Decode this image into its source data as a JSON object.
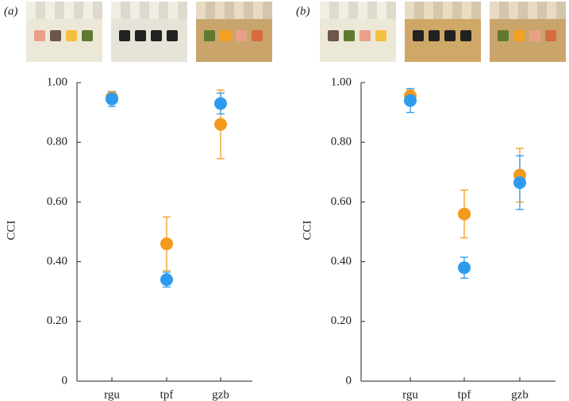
{
  "chart_data": [
    {
      "type": "scatter",
      "panel_label": "(a)",
      "y_label": "CCI",
      "categories": [
        "rgu",
        "tpf",
        "gzb"
      ],
      "ylim": [
        0,
        1
      ],
      "yticks": [
        0,
        {
          "value": 0.2,
          "label": "0.20"
        },
        {
          "value": 0.4,
          "label": "0.40"
        },
        {
          "value": 0.6,
          "label": "0.60"
        },
        {
          "value": 0.8,
          "label": "0.80"
        },
        {
          "value": 1,
          "label": "1.00"
        }
      ],
      "series": [
        {
          "color": "#f39a1e",
          "values": [
            0.95,
            0.46,
            0.86
          ],
          "errors": [
            0.01,
            0.09,
            0.115
          ]
        },
        {
          "color": "#2e9bef",
          "values": [
            0.945,
            0.34,
            0.93
          ],
          "errors": [
            0.025,
            0.025,
            0.035
          ]
        }
      ]
    },
    {
      "type": "scatter",
      "panel_label": "(b)",
      "y_label": "CCI",
      "categories": [
        "rgu",
        "tpf",
        "gzb"
      ],
      "ylim": [
        0,
        1
      ],
      "yticks": [
        0,
        {
          "value": 0.2,
          "label": "0.20"
        },
        {
          "value": 0.4,
          "label": "0.40"
        },
        {
          "value": 0.6,
          "label": "0.60"
        },
        {
          "value": 0.8,
          "label": "0.80"
        },
        {
          "value": 1,
          "label": "1.00"
        }
      ],
      "series": [
        {
          "color": "#f39a1e",
          "values": [
            0.955,
            0.56,
            0.69
          ],
          "errors": [
            0.02,
            0.08,
            0.09
          ]
        },
        {
          "color": "#2e9bef",
          "values": [
            0.94,
            0.38,
            0.665
          ],
          "errors": [
            0.04,
            0.035,
            0.09
          ]
        }
      ]
    }
  ]
}
